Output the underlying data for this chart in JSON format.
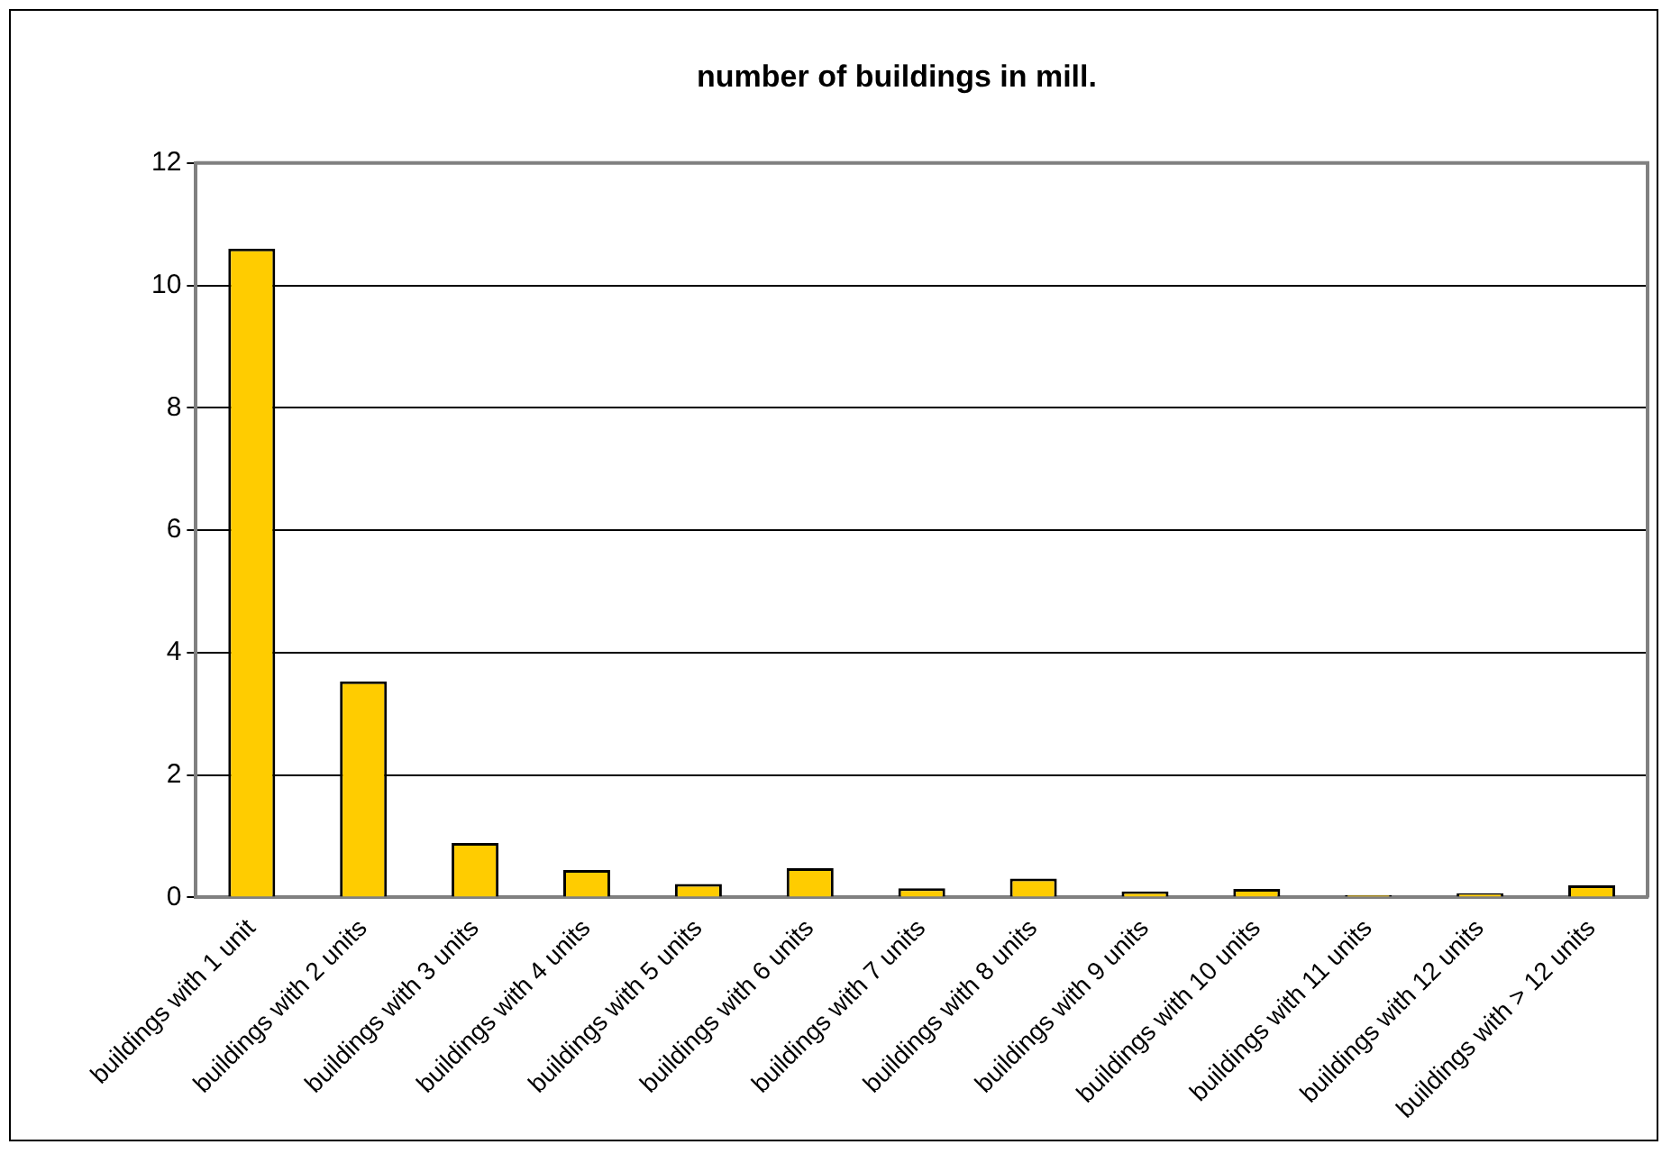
{
  "chart_data": {
    "type": "bar",
    "title": "number of buildings in mill.",
    "categories": [
      "buildings with 1 unit",
      "buildings with 2 units",
      "buildings with 3 units",
      "buildings with 4 units",
      "buildings with 5 units",
      "buildings with 6 units",
      "buildings with 7 units",
      "buildings with 8 units",
      "buildings with 9 units",
      "buildings with 10 units",
      "buildings with 11 units",
      "buildings with 12 units",
      "buildings with > 12 units"
    ],
    "values": [
      10.6,
      3.53,
      0.89,
      0.45,
      0.22,
      0.48,
      0.15,
      0.31,
      0.1,
      0.14,
      0.04,
      0.07,
      0.2
    ],
    "color": "#ffcc00",
    "ylim": [
      0,
      12
    ],
    "yticks": [
      0,
      2,
      4,
      6,
      8,
      10,
      12
    ],
    "grid": "y"
  }
}
